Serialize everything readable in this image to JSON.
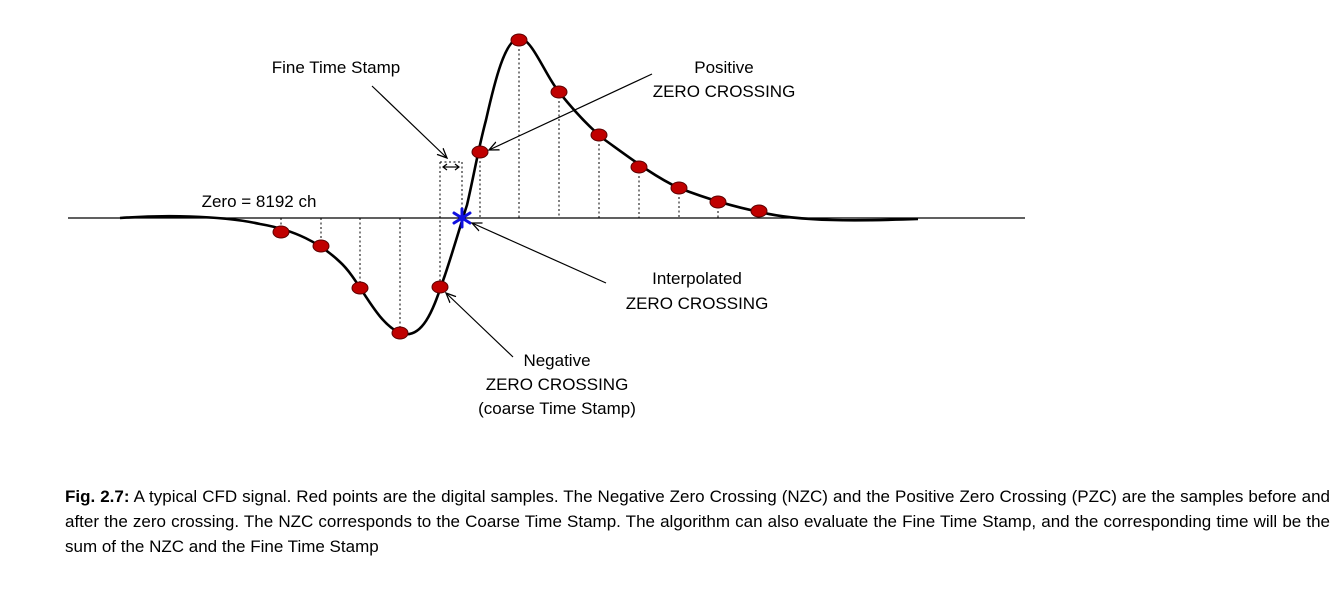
{
  "labels": {
    "fine_time_stamp": "Fine Time Stamp",
    "positive_zc": [
      "Positive",
      "ZERO CROSSING"
    ],
    "zero": "Zero = 8192 ch",
    "interpolated_zc": [
      "Interpolated",
      "ZERO CROSSING"
    ],
    "negative_zc": [
      "Negative",
      "ZERO CROSSING",
      "(coarse Time Stamp)"
    ]
  },
  "caption": {
    "fig_label": "Fig. 2.7:",
    "text": " A typical CFD signal. Red points are the digital samples. The Negative Zero Crossing (NZC) and the Positive Zero Crossing (PZC) are the samples before and after the zero crossing. The NZC corresponds to the Coarse Time Stamp. The algorithm can also evaluate the Fine Time Stamp, and the corresponding time will be the sum of the NZC and the Fine Time Stamp"
  },
  "colors": {
    "sample_fill": "#c00000",
    "sample_stroke": "#5a0000",
    "interpolated_marker": "#1010e0",
    "line": "#000000"
  },
  "icons": {
    "interpolated_marker": "asterisk"
  }
}
